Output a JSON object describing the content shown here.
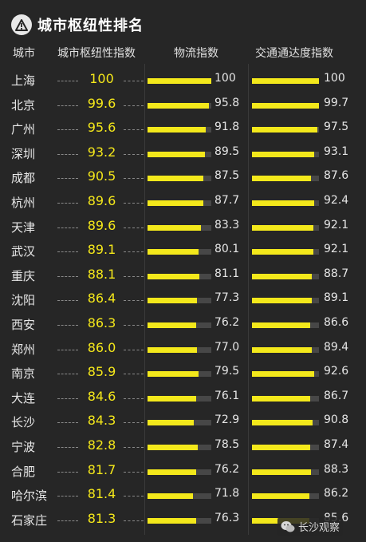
{
  "title": "城市枢纽性排名",
  "icons": {
    "title_icon": "warning-triangle-icon",
    "watermark_icon": "wechat-icon"
  },
  "colors": {
    "accent": "#f3e81b",
    "background": "#262626",
    "track": "#474747"
  },
  "watermark": "长沙观察",
  "chart_data": {
    "type": "table",
    "columns": [
      "城市",
      "城市枢纽性指数",
      "物流指数",
      "交通通达度指数"
    ],
    "scale_max": 100,
    "rows": [
      {
        "city": "上海",
        "hub": "100",
        "logistics": "100",
        "traffic": "100"
      },
      {
        "city": "北京",
        "hub": "99.6",
        "logistics": "95.8",
        "traffic": "99.7"
      },
      {
        "city": "广州",
        "hub": "95.6",
        "logistics": "91.8",
        "traffic": "97.5"
      },
      {
        "city": "深圳",
        "hub": "93.2",
        "logistics": "89.5",
        "traffic": "93.1"
      },
      {
        "city": "成都",
        "hub": "90.5",
        "logistics": "87.5",
        "traffic": "87.6"
      },
      {
        "city": "杭州",
        "hub": "89.6",
        "logistics": "87.7",
        "traffic": "92.4"
      },
      {
        "city": "天津",
        "hub": "89.6",
        "logistics": "83.3",
        "traffic": "92.1"
      },
      {
        "city": "武汉",
        "hub": "89.1",
        "logistics": "80.1",
        "traffic": "92.1"
      },
      {
        "city": "重庆",
        "hub": "88.1",
        "logistics": "81.1",
        "traffic": "88.7"
      },
      {
        "city": "沈阳",
        "hub": "86.4",
        "logistics": "77.3",
        "traffic": "89.1"
      },
      {
        "city": "西安",
        "hub": "86.3",
        "logistics": "76.2",
        "traffic": "86.6"
      },
      {
        "city": "郑州",
        "hub": "86.0",
        "logistics": "77.0",
        "traffic": "89.4"
      },
      {
        "city": "南京",
        "hub": "85.9",
        "logistics": "79.5",
        "traffic": "92.6"
      },
      {
        "city": "大连",
        "hub": "84.6",
        "logistics": "76.1",
        "traffic": "86.7"
      },
      {
        "city": "长沙",
        "hub": "84.3",
        "logistics": "72.9",
        "traffic": "90.8"
      },
      {
        "city": "宁波",
        "hub": "82.8",
        "logistics": "78.5",
        "traffic": "87.4"
      },
      {
        "city": "合肥",
        "hub": "81.7",
        "logistics": "76.2",
        "traffic": "88.3"
      },
      {
        "city": "哈尔滨",
        "hub": "81.4",
        "logistics": "71.8",
        "traffic": "86.2"
      },
      {
        "city": "石家庄",
        "hub": "81.3",
        "logistics": "76.3",
        "traffic": "85.6"
      }
    ]
  }
}
